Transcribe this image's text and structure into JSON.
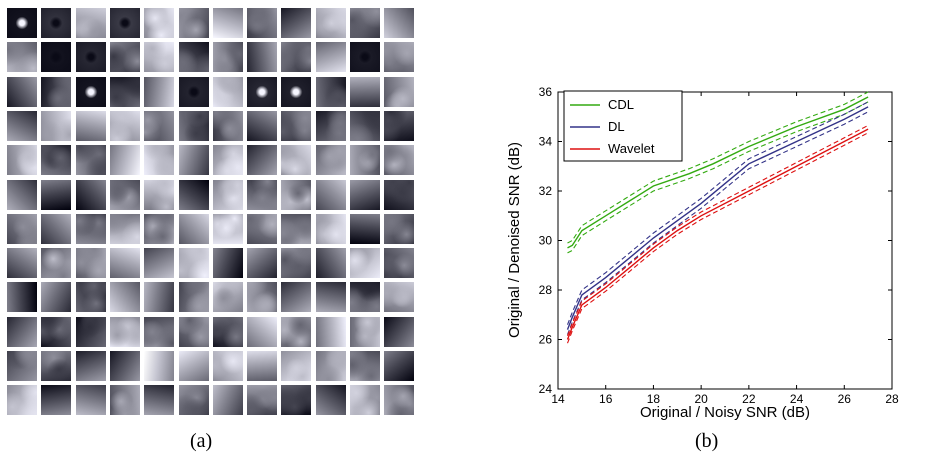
{
  "captions": {
    "left": "(a)",
    "right": "(b)"
  },
  "atoms_panel": {
    "rows": 12,
    "cols": 12
  },
  "chart_data": {
    "type": "line",
    "xlabel": "Original / Noisy SNR (dB)",
    "ylabel": "Original / Denoised SNR (dB)",
    "xlim": [
      14,
      28
    ],
    "ylim": [
      24,
      36
    ],
    "xticks": [
      14,
      16,
      18,
      20,
      22,
      24,
      26,
      28
    ],
    "yticks": [
      24,
      26,
      28,
      30,
      32,
      34,
      36
    ],
    "grid": false,
    "legend_position": "top-left",
    "series": [
      {
        "name": "CDL",
        "color": "#33aa11",
        "x": [
          14.4,
          14.6,
          15.0,
          16.0,
          17.0,
          18.0,
          19.5,
          20.5,
          22.0,
          24.0,
          26.0,
          27.0
        ],
        "y": [
          29.7,
          29.8,
          30.4,
          31.0,
          31.6,
          32.2,
          32.7,
          33.1,
          33.8,
          34.6,
          35.3,
          35.8
        ],
        "band": 0.2
      },
      {
        "name": "DL",
        "color": "#333388",
        "x": [
          14.4,
          14.6,
          15.0,
          16.0,
          17.0,
          18.0,
          19.0,
          20.0,
          21.0,
          22.0,
          24.0,
          26.0,
          27.0
        ],
        "y": [
          26.4,
          26.9,
          27.8,
          28.5,
          29.3,
          30.1,
          30.8,
          31.5,
          32.3,
          33.1,
          34.0,
          34.9,
          35.4
        ],
        "band": 0.2
      },
      {
        "name": "Wavelet",
        "color": "#dd1111",
        "x": [
          14.4,
          14.6,
          15.0,
          16.0,
          17.0,
          18.0,
          19.0,
          20.0,
          22.0,
          24.0,
          26.0,
          27.0
        ],
        "y": [
          26.0,
          26.5,
          27.4,
          28.1,
          28.9,
          29.7,
          30.4,
          31.0,
          32.0,
          33.0,
          34.0,
          34.5
        ],
        "band": 0.15
      }
    ]
  }
}
